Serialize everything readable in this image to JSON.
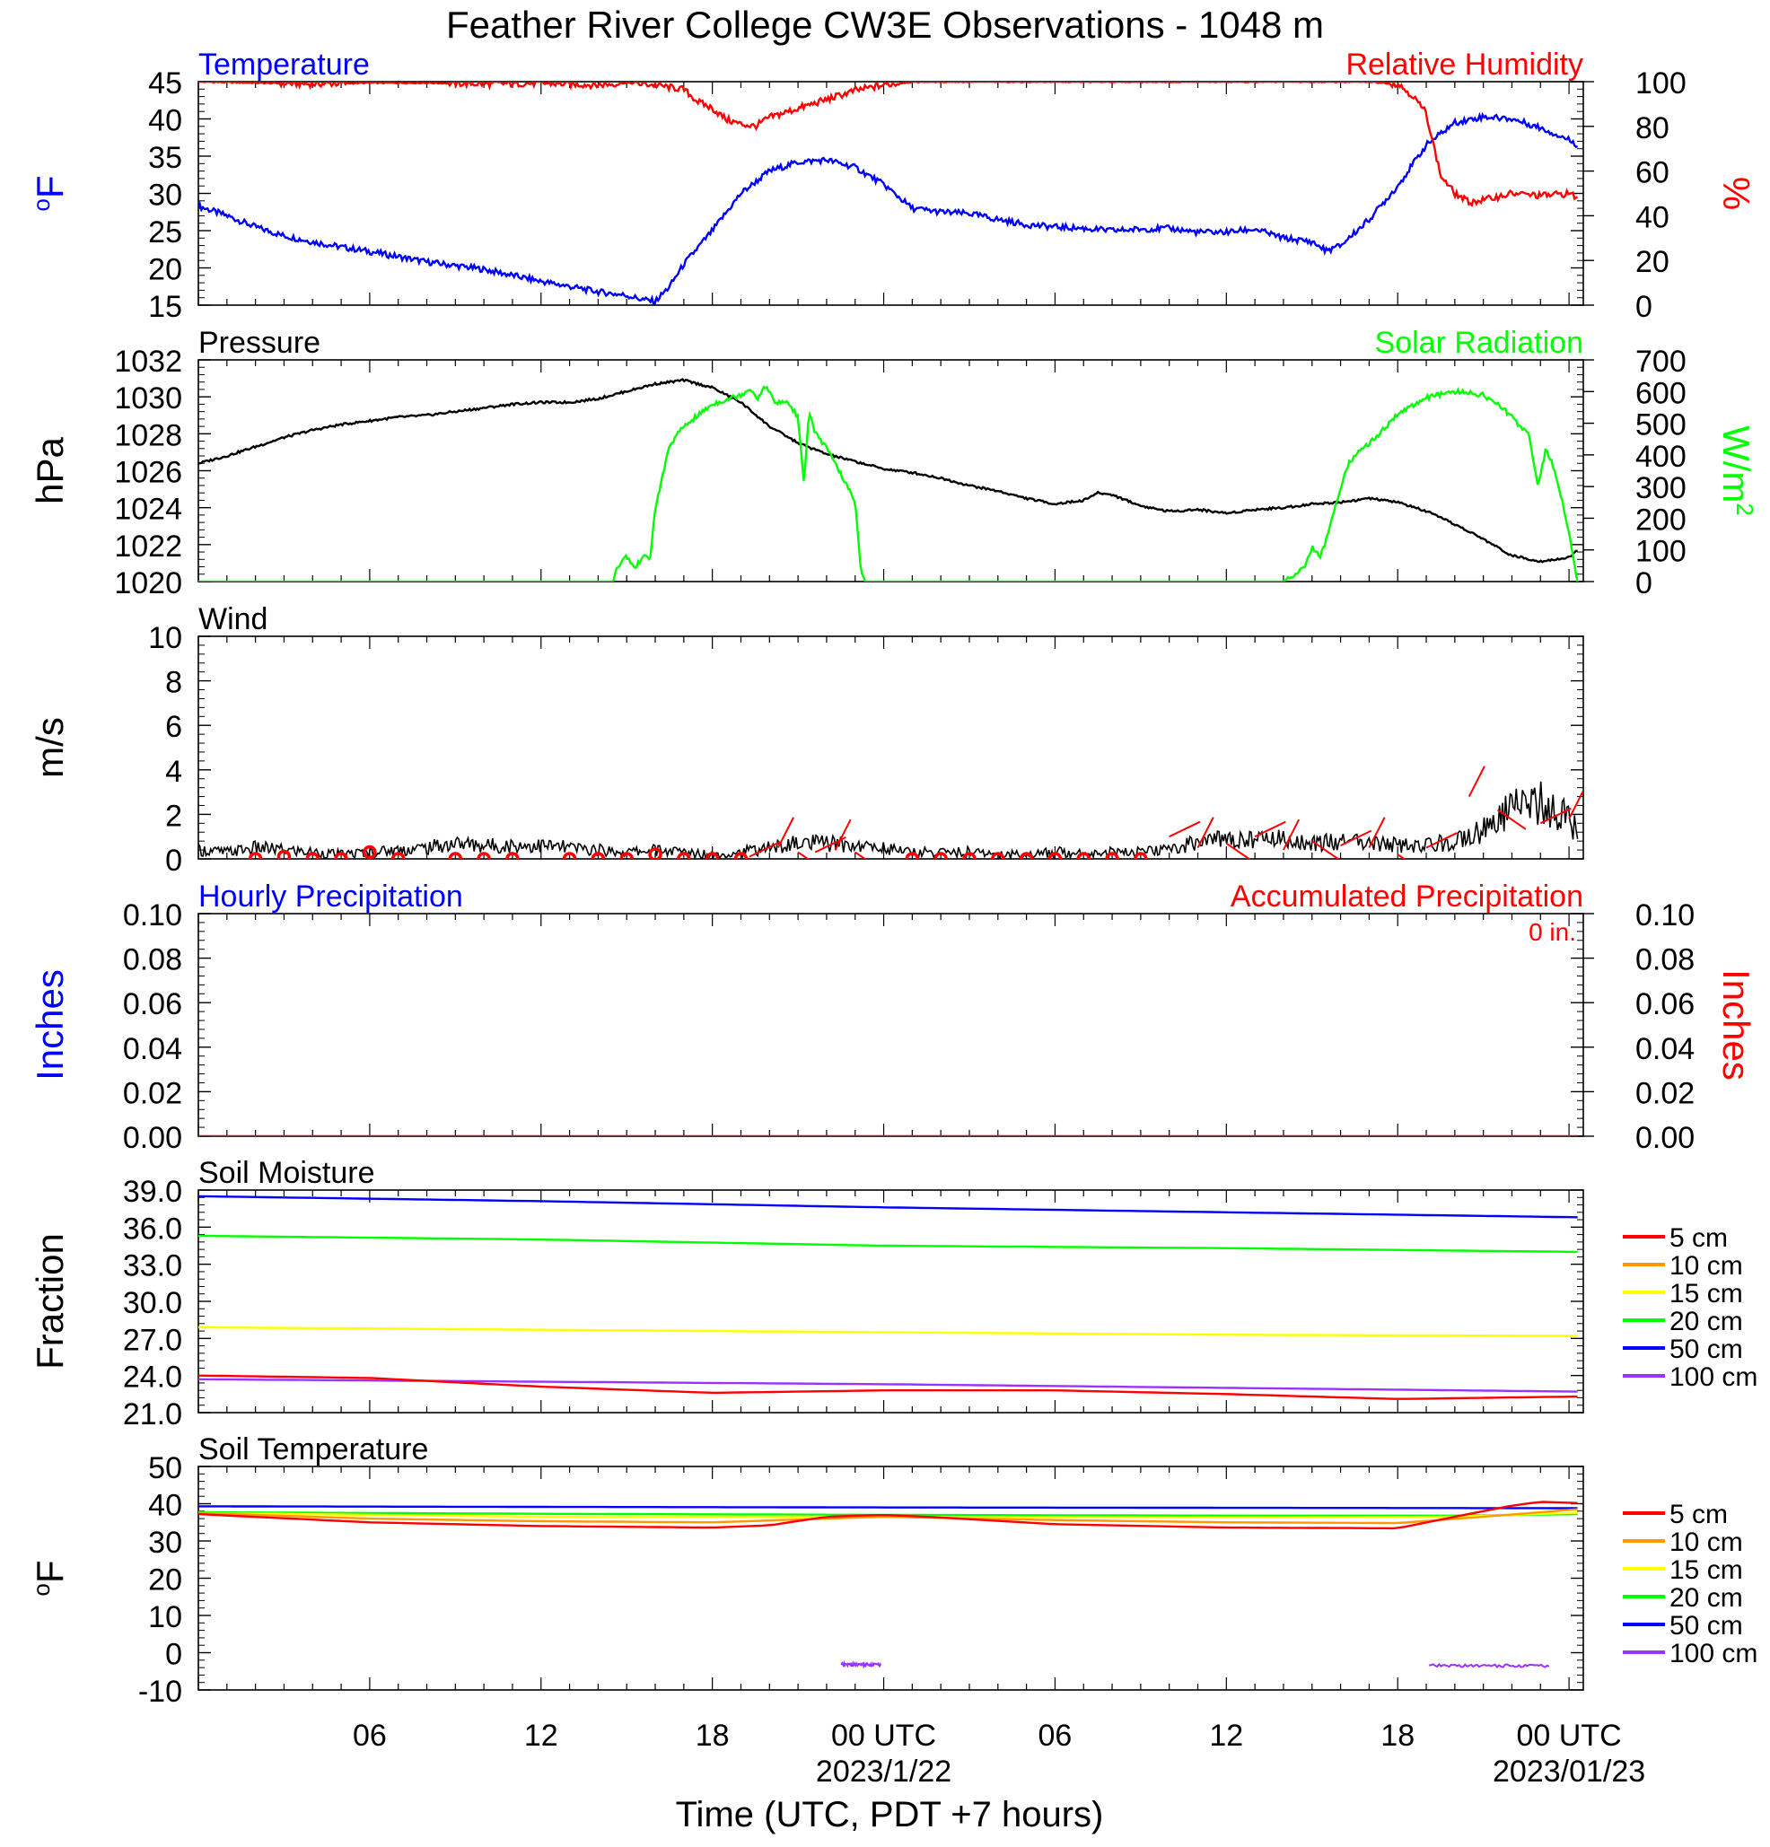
{
  "title": "Feather River College CW3E Observations - 1048 m",
  "x_axis": {
    "tick_labels": [
      "06",
      "12",
      "18",
      "00 UTC",
      "06",
      "12",
      "18",
      "00 UTC"
    ],
    "tick_hours": [
      6,
      12,
      18,
      24,
      30,
      36,
      42,
      48
    ],
    "date_labels": [
      "2023/1/22",
      "2023/01/23"
    ],
    "date_hours": [
      24,
      48
    ],
    "xlabel": "Time (UTC, PDT +7 hours)",
    "range_hours": [
      0,
      48.5
    ]
  },
  "chart_data": [
    {
      "type": "line",
      "panel": "temperature-humidity",
      "title_left": "Temperature",
      "title_right": "Relative Humidity",
      "ylabel_left": "°F",
      "ylabel_right": "%",
      "ylim_left": [
        15,
        45
      ],
      "yticks_left": [
        "45",
        "40",
        "35",
        "30",
        "25",
        "20",
        "15"
      ],
      "ylim_right": [
        0,
        100
      ],
      "yticks_right": [
        "100",
        "80",
        "60",
        "40",
        "20",
        "0"
      ],
      "series": [
        {
          "name": "Temperature",
          "axis": "left",
          "color": "#0000ff",
          "x": [
            0,
            1,
            2,
            3,
            4,
            5,
            6,
            7,
            8,
            9,
            10,
            11,
            12,
            13,
            14,
            15,
            15.5,
            16,
            16.5,
            17,
            18,
            19,
            20,
            21,
            22,
            23,
            24,
            25,
            26,
            27,
            28,
            29,
            30,
            31,
            32,
            33,
            34,
            35,
            36,
            37,
            38,
            39,
            39.5,
            40,
            41,
            42,
            43,
            44,
            45,
            46,
            47,
            48,
            48.3
          ],
          "y": [
            28.3,
            27,
            25.5,
            24.3,
            23.5,
            22.8,
            22.2,
            21.5,
            20.8,
            20.3,
            19.8,
            19,
            18.2,
            17.5,
            16.8,
            16.3,
            15.8,
            15.5,
            17.5,
            20.5,
            25,
            30,
            33,
            34.2,
            34.5,
            33.5,
            31.2,
            28,
            27.5,
            27.3,
            26.5,
            25.8,
            25.5,
            25.3,
            25,
            25.2,
            25.3,
            24.8,
            24.8,
            25.2,
            24,
            23.5,
            22.3,
            23,
            26.5,
            31,
            36.5,
            39.5,
            40.3,
            40,
            38.8,
            37.2,
            36.5
          ]
        },
        {
          "name": "Relative Humidity",
          "axis": "right",
          "color": "#ff0000",
          "x": [
            0,
            2,
            4,
            6,
            8,
            10,
            12,
            14,
            15,
            16,
            17,
            17.5,
            18,
            18.5,
            19,
            19.5,
            20,
            20.5,
            21,
            22,
            23,
            24,
            25,
            26,
            30,
            34,
            38,
            40,
            41,
            42,
            42.5,
            43,
            43.5,
            44,
            44.5,
            45,
            46,
            47,
            48,
            48.3
          ],
          "y": [
            100,
            99.5,
            99,
            99.5,
            99.5,
            99,
            99.3,
            98.5,
            99.5,
            98.5,
            96.5,
            91,
            88,
            83,
            81,
            80,
            84,
            86,
            88,
            92,
            96,
            98.5,
            100,
            100,
            100,
            100,
            100,
            100,
            100,
            99,
            94,
            86,
            58,
            50,
            46,
            47,
            50,
            49,
            50,
            48
          ]
        }
      ]
    },
    {
      "type": "line",
      "panel": "pressure-solar",
      "title_left": "Pressure",
      "title_right": "Solar Radiation",
      "ylabel_left": "hPa",
      "ylabel_right": "W/m",
      "ylabel_right_sup": "2",
      "ylim_left": [
        1020,
        1032
      ],
      "yticks_left": [
        "1032",
        "1030",
        "1028",
        "1026",
        "1024",
        "1022",
        "1020"
      ],
      "ylim_right": [
        0,
        700
      ],
      "yticks_right": [
        "700",
        "600",
        "500",
        "400",
        "300",
        "200",
        "100",
        "0"
      ],
      "series": [
        {
          "name": "Pressure",
          "axis": "left",
          "color": "#000000",
          "x": [
            0,
            1,
            2,
            3,
            4,
            5,
            6,
            7,
            8,
            9,
            10,
            11,
            12,
            13,
            14,
            15,
            16,
            16.5,
            17,
            18,
            19,
            20,
            21,
            22,
            23,
            24,
            25,
            26,
            27,
            28,
            29,
            30,
            31,
            31.5,
            32,
            33,
            34,
            35,
            36,
            37,
            38,
            39,
            40,
            41,
            42,
            43,
            44,
            45,
            46,
            47,
            48,
            48.3
          ],
          "y": [
            1026.4,
            1026.8,
            1027.3,
            1027.8,
            1028.2,
            1028.5,
            1028.7,
            1028.9,
            1029.0,
            1029.2,
            1029.4,
            1029.6,
            1029.7,
            1029.7,
            1029.9,
            1030.3,
            1030.7,
            1030.8,
            1030.9,
            1030.5,
            1029.7,
            1028.4,
            1027.5,
            1026.9,
            1026.5,
            1026.1,
            1025.9,
            1025.6,
            1025.2,
            1024.9,
            1024.5,
            1024.2,
            1024.4,
            1024.8,
            1024.7,
            1024.1,
            1023.8,
            1023.9,
            1023.7,
            1023.9,
            1024,
            1024.2,
            1024.3,
            1024.5,
            1024.3,
            1023.8,
            1023.1,
            1022.3,
            1021.4,
            1021.1,
            1021.3,
            1021.7
          ]
        },
        {
          "name": "Solar Radiation",
          "axis": "right",
          "color": "#00ff00",
          "x": [
            0,
            14.5,
            14.7,
            15,
            15.3,
            15.6,
            15.8,
            16,
            16.5,
            17,
            18,
            19,
            19.3,
            19.6,
            19.9,
            20.2,
            20.6,
            21,
            21.2,
            21.4,
            21.6,
            22,
            22.5,
            23,
            23.2,
            23.4,
            23.6,
            30,
            38,
            38.7,
            39,
            39.3,
            39.6,
            40,
            40.3,
            40.8,
            41.5,
            42,
            43,
            44,
            45,
            45.5,
            46,
            46.3,
            46.6,
            46.9,
            47.2,
            47.5,
            47.9,
            48.3
          ],
          "y": [
            0,
            0,
            50,
            80,
            40,
            90,
            60,
            230,
            430,
            490,
            560,
            590,
            610,
            580,
            620,
            560,
            570,
            520,
            310,
            540,
            470,
            420,
            340,
            250,
            30,
            0,
            0,
            0,
            0,
            40,
            110,
            80,
            160,
            300,
            380,
            420,
            480,
            530,
            580,
            600,
            590,
            560,
            520,
            490,
            470,
            300,
            420,
            350,
            200,
            0
          ]
        }
      ]
    },
    {
      "type": "line",
      "panel": "wind",
      "title_left": "Wind",
      "ylabel_left": "m/s",
      "ylim_left": [
        0,
        10
      ],
      "yticks_left": [
        "10",
        "8",
        "6",
        "4",
        "2",
        "0"
      ],
      "series": [
        {
          "name": "Wind",
          "axis": "left",
          "color": "#000000",
          "x": [
            0,
            1,
            2,
            3,
            4,
            5,
            6,
            7,
            8,
            9,
            10,
            11,
            12,
            13,
            14,
            15,
            16,
            17,
            18,
            19,
            20,
            21,
            22,
            23,
            24,
            25,
            26,
            27,
            28,
            29,
            30,
            31,
            32,
            33,
            34,
            35,
            36,
            37,
            38,
            39,
            40,
            41,
            42,
            43,
            44,
            45,
            46,
            47,
            48,
            48.3
          ],
          "y": [
            0.4,
            0.3,
            0.5,
            0.4,
            0.3,
            0.2,
            0.3,
            0.4,
            0.5,
            0.7,
            0.6,
            0.6,
            0.6,
            0.5,
            0.4,
            0.3,
            0.4,
            0.3,
            0.2,
            0.3,
            0.5,
            0.7,
            0.7,
            0.6,
            0.5,
            0.3,
            0.3,
            0.3,
            0.2,
            0.2,
            0.3,
            0.3,
            0.3,
            0.3,
            0.4,
            0.8,
            0.9,
            0.9,
            0.9,
            0.7,
            0.8,
            0.7,
            0.6,
            0.6,
            0.8,
            1.3,
            2.2,
            2.5,
            1.8,
            1.2
          ]
        },
        {
          "name": "Wind barbs",
          "axis": "left",
          "color": "#ff0000",
          "style": "barbs",
          "calm_hours": [
            2,
            3,
            4,
            5,
            6,
            7,
            9,
            10,
            11,
            13,
            14,
            15,
            16,
            17,
            18,
            19,
            25,
            26,
            27,
            28,
            29,
            30,
            31,
            32,
            33
          ],
          "calm_values": [
            0,
            0.1,
            0,
            0,
            0.3,
            0,
            0,
            0,
            0,
            0,
            0,
            0,
            0.2,
            0,
            0,
            0,
            0,
            0,
            0,
            0,
            0,
            0,
            0,
            0,
            0
          ]
        }
      ]
    },
    {
      "type": "line",
      "panel": "precipitation",
      "title_left": "Hourly Precipitation",
      "title_right": "Accumulated Precipitation",
      "total_label": "0 in.",
      "ylabel_left": "Inches",
      "ylabel_right": "Inches",
      "ylim_left": [
        0,
        0.1
      ],
      "yticks_left": [
        "0.10",
        "0.08",
        "0.06",
        "0.04",
        "0.02",
        "0.00"
      ],
      "ylim_right": [
        0,
        0.1
      ],
      "yticks_right": [
        "0.10",
        "0.08",
        "0.06",
        "0.04",
        "0.02",
        "0.00"
      ],
      "series": [
        {
          "name": "Accumulated Precipitation",
          "axis": "right",
          "color": "#ff0000",
          "x": [
            0,
            48.3
          ],
          "y": [
            0,
            0
          ]
        }
      ]
    },
    {
      "type": "line",
      "panel": "soil-moisture",
      "title_left": "Soil Moisture",
      "ylabel_left": "Fraction",
      "ylim_left": [
        21,
        39
      ],
      "yticks_left": [
        "39.0",
        "36.0",
        "33.0",
        "30.0",
        "27.0",
        "24.0",
        "21.0"
      ],
      "legend": [
        "5 cm",
        "10 cm",
        "15 cm",
        "20 cm",
        "50 cm",
        "100 cm"
      ],
      "series": [
        {
          "name": "50 cm",
          "color": "#0000ff",
          "x": [
            0,
            12,
            24,
            36,
            48.3
          ],
          "y": [
            38.5,
            38.1,
            37.6,
            37.2,
            36.8
          ]
        },
        {
          "name": "20 cm",
          "color": "#00ff00",
          "x": [
            0,
            12,
            24,
            36,
            48.3
          ],
          "y": [
            35.3,
            35.0,
            34.5,
            34.3,
            34.0
          ]
        },
        {
          "name": "15 cm",
          "color": "#ffff00",
          "x": [
            0,
            12,
            24,
            36,
            48.3
          ],
          "y": [
            27.9,
            27.7,
            27.5,
            27.3,
            27.2
          ]
        },
        {
          "name": "100 cm",
          "color": "#9933ff",
          "x": [
            0,
            12,
            24,
            36,
            48.3
          ],
          "y": [
            23.7,
            23.5,
            23.3,
            23.0,
            22.7
          ]
        },
        {
          "name": "5 cm",
          "color": "#ff0000",
          "x": [
            0,
            6,
            12,
            18,
            24,
            30,
            36,
            42,
            48.3
          ],
          "y": [
            24.0,
            23.8,
            23.1,
            22.6,
            22.8,
            22.8,
            22.5,
            22.1,
            22.3
          ]
        }
      ]
    },
    {
      "type": "line",
      "panel": "soil-temperature",
      "title_left": "Soil Temperature",
      "ylabel_left": "°F",
      "ylim_left": [
        -10,
        50
      ],
      "yticks_left": [
        "50",
        "40",
        "30",
        "20",
        "10",
        "0",
        "-10"
      ],
      "legend": [
        "5 cm",
        "10 cm",
        "15 cm",
        "20 cm",
        "50 cm",
        "100 cm"
      ],
      "series": [
        {
          "name": "50 cm",
          "color": "#0000ff",
          "x": [
            0,
            24,
            48.3
          ],
          "y": [
            39.3,
            39.0,
            38.8
          ]
        },
        {
          "name": "20 cm",
          "color": "#00ff00",
          "x": [
            0,
            12,
            24,
            36,
            44,
            48.3
          ],
          "y": [
            37.7,
            37.3,
            37.0,
            36.8,
            36.8,
            37.2
          ]
        },
        {
          "name": "15 cm",
          "color": "#ffff00",
          "x": [
            0,
            12,
            24,
            36,
            44,
            48.3
          ],
          "y": [
            37.5,
            36.5,
            36.5,
            36.3,
            36.5,
            37.6
          ]
        },
        {
          "name": "10 cm",
          "color": "#ff9900",
          "x": [
            0,
            6,
            12,
            18,
            24,
            30,
            36,
            42,
            45,
            48.3
          ],
          "y": [
            37.5,
            36.0,
            35.3,
            35.0,
            36.5,
            35.6,
            35.0,
            34.8,
            36.5,
            38.5
          ]
        },
        {
          "name": "5 cm",
          "color": "#ff0000",
          "x": [
            0,
            6,
            12,
            18,
            20,
            22,
            24,
            26,
            30,
            36,
            42,
            44,
            46,
            47,
            48.3
          ],
          "y": [
            37.2,
            35.0,
            34.0,
            33.6,
            34.2,
            36.5,
            37.0,
            36.3,
            34.5,
            33.6,
            33.4,
            36.5,
            39.5,
            40.5,
            40.2
          ]
        },
        {
          "name": "100 cm",
          "color": "#9933ff",
          "segments": [
            {
              "x": [
                22.5,
                23.9
              ],
              "y": [
                -3.2,
                -3.2
              ]
            },
            {
              "x": [
                43.1,
                47.3
              ],
              "y": [
                -3.5,
                -3.5
              ]
            }
          ]
        }
      ]
    }
  ]
}
